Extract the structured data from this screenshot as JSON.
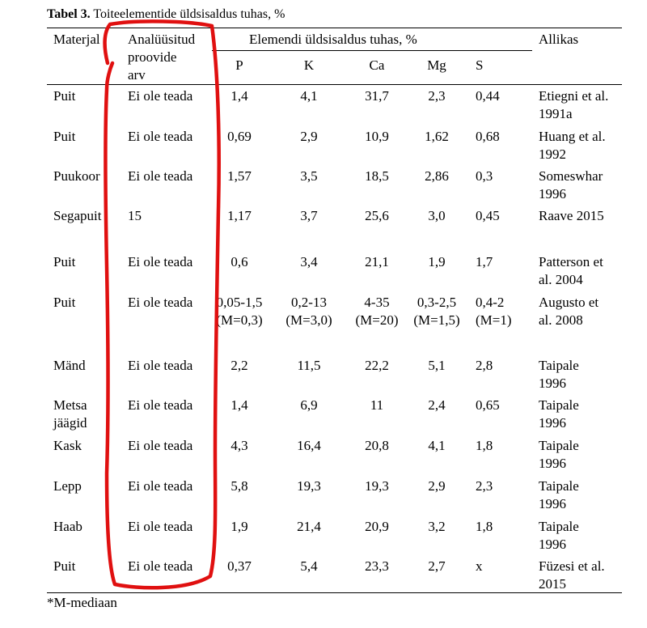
{
  "caption": {
    "label": "Tabel 3.",
    "text": "Toiteelementide üldsisaldus tuhas, %"
  },
  "headers": {
    "material": "Materjal",
    "samples": [
      "Analüüsitud",
      "proovide",
      "arv"
    ],
    "group": "Elemendi üldsisaldus tuhas, %",
    "elements": [
      "P",
      "K",
      "Ca",
      "Mg",
      "S"
    ],
    "source": "Allikas"
  },
  "rows": [
    {
      "material": [
        "Puit"
      ],
      "samples": "Ei ole teada",
      "values": [
        [
          "1,4"
        ],
        [
          "4,1"
        ],
        [
          "31,7"
        ],
        [
          "2,3"
        ],
        [
          "0,44"
        ]
      ],
      "source": [
        "Etiegni et al.",
        "1991a"
      ]
    },
    {
      "material": [
        "Puit"
      ],
      "samples": "Ei ole teada",
      "values": [
        [
          "0,69"
        ],
        [
          "2,9"
        ],
        [
          "10,9"
        ],
        [
          "1,62"
        ],
        [
          "0,68"
        ]
      ],
      "source": [
        "Huang et al.",
        "1992"
      ]
    },
    {
      "material": [
        "Puukoor"
      ],
      "samples": "Ei ole teada",
      "values": [
        [
          "1,57"
        ],
        [
          "3,5"
        ],
        [
          "18,5"
        ],
        [
          "2,86"
        ],
        [
          "0,3"
        ]
      ],
      "source": [
        "Someswhar",
        "1996"
      ]
    },
    {
      "material": [
        "Segapuit"
      ],
      "samples": "15",
      "values": [
        [
          "1,17"
        ],
        [
          "3,7"
        ],
        [
          "25,6"
        ],
        [
          "3,0"
        ],
        [
          "0,45"
        ]
      ],
      "source": [
        "Raave 2015"
      ]
    },
    {
      "material": [
        "Puit"
      ],
      "samples": "Ei ole teada",
      "values": [
        [
          "0,6"
        ],
        [
          "3,4"
        ],
        [
          "21,1"
        ],
        [
          "1,9"
        ],
        [
          "1,7"
        ]
      ],
      "source": [
        "Patterson et",
        "al. 2004"
      ]
    },
    {
      "material": [
        "Puit"
      ],
      "samples": "Ei ole teada",
      "values": [
        [
          "0,05-1,5",
          "(M=0,3)"
        ],
        [
          "0,2-13",
          "(M=3,0)"
        ],
        [
          "4-35",
          "(M=20)"
        ],
        [
          "0,3-2,5",
          "(M=1,5)"
        ],
        [
          "0,4-2",
          "(M=1)"
        ]
      ],
      "source": [
        "Augusto et",
        "al. 2008"
      ]
    },
    {
      "material": [
        "Mänd"
      ],
      "samples": "Ei ole teada",
      "values": [
        [
          "2,2"
        ],
        [
          "11,5"
        ],
        [
          "22,2"
        ],
        [
          "5,1"
        ],
        [
          "2,8"
        ]
      ],
      "source": [
        "Taipale",
        "1996"
      ]
    },
    {
      "material": [
        "Metsa",
        "jäägid"
      ],
      "samples": "Ei ole teada",
      "values": [
        [
          "1,4"
        ],
        [
          "6,9"
        ],
        [
          "11"
        ],
        [
          "2,4"
        ],
        [
          "0,65"
        ]
      ],
      "source": [
        "Taipale",
        "1996"
      ]
    },
    {
      "material": [
        "Kask"
      ],
      "samples": "Ei ole teada",
      "values": [
        [
          "4,3"
        ],
        [
          "16,4"
        ],
        [
          "20,8"
        ],
        [
          "4,1"
        ],
        [
          "1,8"
        ]
      ],
      "source": [
        "Taipale",
        "1996"
      ]
    },
    {
      "material": [
        "Lepp"
      ],
      "samples": "Ei ole teada",
      "values": [
        [
          "5,8"
        ],
        [
          "19,3"
        ],
        [
          "19,3"
        ],
        [
          "2,9"
        ],
        [
          "2,3"
        ]
      ],
      "source": [
        "Taipale",
        "1996"
      ]
    },
    {
      "material": [
        "Haab"
      ],
      "samples": "Ei ole teada",
      "values": [
        [
          "1,9"
        ],
        [
          "21,4"
        ],
        [
          "20,9"
        ],
        [
          "3,2"
        ],
        [
          "1,8"
        ]
      ],
      "source": [
        "Taipale",
        "1996"
      ]
    },
    {
      "material": [
        "Puit"
      ],
      "samples": "Ei ole teada",
      "values": [
        [
          "0,37"
        ],
        [
          "5,4"
        ],
        [
          "23,3"
        ],
        [
          "2,7"
        ],
        [
          "x"
        ]
      ],
      "source": [
        "Füzesi et al.",
        "2015"
      ]
    }
  ],
  "footnote": "*M-mediaan",
  "annotation": {
    "color": "#e01010"
  }
}
